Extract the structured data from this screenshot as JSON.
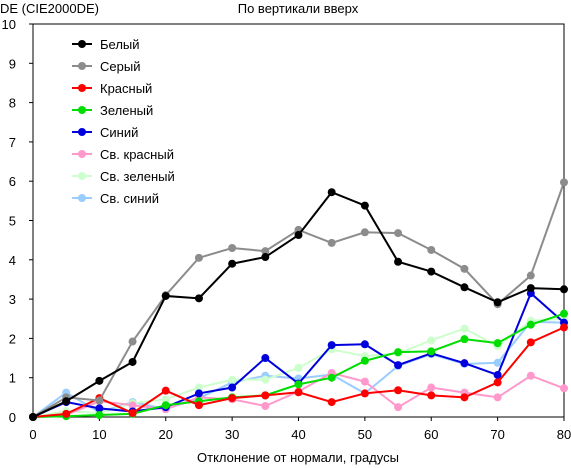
{
  "chart_data": {
    "type": "line",
    "title": "По вертикали вверх",
    "ylabel": "DE (CIE2000DE)",
    "xlabel": "Отклонение от нормали, градусы",
    "x": [
      0,
      5,
      10,
      15,
      20,
      25,
      30,
      35,
      40,
      45,
      50,
      55,
      60,
      65,
      70,
      75,
      80
    ],
    "xlim": [
      0,
      80
    ],
    "ylim": [
      0,
      10
    ],
    "xticks": [
      "0",
      "10",
      "20",
      "30",
      "40",
      "50",
      "60",
      "70",
      "80"
    ],
    "yticks": [
      "0",
      "1",
      "2",
      "3",
      "4",
      "5",
      "6",
      "7",
      "8",
      "9",
      "10"
    ],
    "grid": false,
    "legend": "top-left",
    "series": [
      {
        "name": "Белый",
        "color": "#000000",
        "values": [
          0,
          0.4,
          0.92,
          1.4,
          3.08,
          3.02,
          3.9,
          4.07,
          4.63,
          5.72,
          5.38,
          3.95,
          3.7,
          3.3,
          2.92,
          3.28,
          3.25
        ]
      },
      {
        "name": "Серый",
        "color": "#8c8c8c",
        "values": [
          0,
          0.5,
          0.42,
          1.92,
          3.1,
          4.05,
          4.3,
          4.22,
          4.76,
          4.43,
          4.7,
          4.68,
          4.25,
          3.77,
          2.87,
          3.6,
          5.97
        ]
      },
      {
        "name": "Красный",
        "color": "#ff0000",
        "values": [
          0,
          0.08,
          0.48,
          0.1,
          0.67,
          0.3,
          0.48,
          0.55,
          0.63,
          0.38,
          0.6,
          0.68,
          0.55,
          0.5,
          0.88,
          1.9,
          2.28
        ]
      },
      {
        "name": "Зеленый",
        "color": "#00dd00",
        "values": [
          0,
          0.02,
          0.05,
          0.08,
          0.3,
          0.4,
          0.5,
          0.55,
          0.83,
          1.0,
          1.43,
          1.65,
          1.67,
          1.98,
          1.88,
          2.35,
          2.63
        ]
      },
      {
        "name": "Синий",
        "color": "#0000dd",
        "values": [
          0,
          0.38,
          0.22,
          0.14,
          0.25,
          0.6,
          0.75,
          1.5,
          0.85,
          1.83,
          1.85,
          1.32,
          1.62,
          1.37,
          1.07,
          3.15,
          2.4
        ]
      },
      {
        "name": "Св. красный",
        "color": "#ff99cc",
        "values": [
          0,
          0.05,
          0.4,
          0.3,
          0.2,
          0.5,
          0.45,
          0.28,
          0.65,
          1.12,
          0.9,
          0.25,
          0.75,
          0.62,
          0.5,
          1.05,
          0.73
        ]
      },
      {
        "name": "Св. зеленый",
        "color": "#ccffcc",
        "values": [
          0,
          0.15,
          0.1,
          0.35,
          0.45,
          0.75,
          0.95,
          0.95,
          1.25,
          1.72,
          1.55,
          1.62,
          1.95,
          2.25,
          1.8,
          2.45,
          2.5
        ]
      },
      {
        "name": "Св. синий",
        "color": "#99ccff",
        "values": [
          0,
          0.62,
          0.12,
          0.38,
          0.2,
          0.48,
          0.88,
          1.05,
          0.98,
          1.08,
          0.6,
          1.3,
          1.6,
          1.35,
          1.38,
          2.42,
          2.4
        ]
      }
    ]
  }
}
